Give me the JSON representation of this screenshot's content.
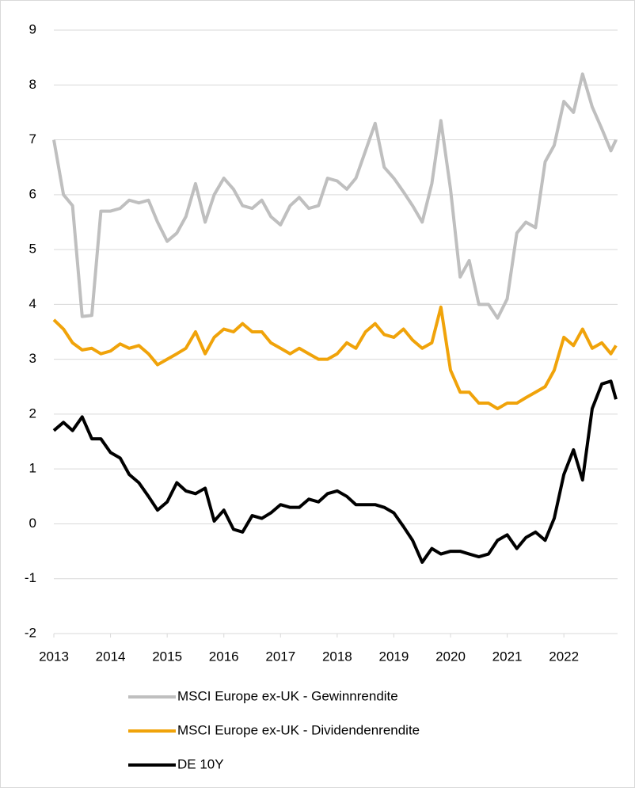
{
  "chart_data": {
    "type": "line",
    "x": [
      2013.0,
      2013.17,
      2013.33,
      2013.5,
      2013.67,
      2013.83,
      2014.0,
      2014.17,
      2014.33,
      2014.5,
      2014.67,
      2014.83,
      2015.0,
      2015.17,
      2015.33,
      2015.5,
      2015.67,
      2015.83,
      2016.0,
      2016.17,
      2016.33,
      2016.5,
      2016.67,
      2016.83,
      2017.0,
      2017.17,
      2017.33,
      2017.5,
      2017.67,
      2017.83,
      2018.0,
      2018.17,
      2018.33,
      2018.5,
      2018.67,
      2018.83,
      2019.0,
      2019.17,
      2019.33,
      2019.5,
      2019.67,
      2019.83,
      2020.0,
      2020.17,
      2020.33,
      2020.5,
      2020.67,
      2020.83,
      2021.0,
      2021.17,
      2021.33,
      2021.5,
      2021.67,
      2021.83,
      2022.0,
      2022.17,
      2022.33,
      2022.5,
      2022.67,
      2022.83,
      2022.92
    ],
    "series": [
      {
        "name": "MSCI Europe ex-UK - Gewinnrendite",
        "color": "#bfbfbf",
        "values": [
          7.0,
          6.0,
          5.8,
          3.78,
          3.8,
          5.7,
          5.7,
          5.75,
          5.9,
          5.85,
          5.9,
          5.5,
          5.15,
          5.3,
          5.6,
          6.2,
          5.5,
          6.0,
          6.3,
          6.1,
          5.8,
          5.75,
          5.9,
          5.6,
          5.45,
          5.8,
          5.95,
          5.75,
          5.8,
          6.3,
          6.25,
          6.1,
          6.3,
          6.8,
          7.3,
          6.5,
          6.3,
          6.05,
          5.8,
          5.5,
          6.2,
          7.35,
          6.1,
          4.5,
          4.8,
          4.0,
          4.0,
          3.75,
          4.1,
          5.3,
          5.5,
          5.4,
          6.6,
          6.9,
          7.7,
          7.5,
          8.2,
          7.6,
          7.2,
          6.8,
          7.0
        ]
      },
      {
        "name": "MSCI Europe ex-UK - Dividendenrendite",
        "color": "#f0a30a",
        "values": [
          3.72,
          3.55,
          3.3,
          3.17,
          3.2,
          3.1,
          3.15,
          3.28,
          3.2,
          3.25,
          3.1,
          2.9,
          3.0,
          3.1,
          3.2,
          3.5,
          3.1,
          3.4,
          3.55,
          3.5,
          3.65,
          3.5,
          3.5,
          3.3,
          3.2,
          3.1,
          3.2,
          3.1,
          3.0,
          3.0,
          3.1,
          3.3,
          3.2,
          3.5,
          3.65,
          3.45,
          3.4,
          3.55,
          3.35,
          3.2,
          3.3,
          3.95,
          2.8,
          2.4,
          2.4,
          2.2,
          2.2,
          2.1,
          2.2,
          2.2,
          2.3,
          2.4,
          2.5,
          2.8,
          3.4,
          3.25,
          3.55,
          3.2,
          3.3,
          3.1,
          3.25
        ]
      },
      {
        "name": "DE 10Y",
        "color": "#000000",
        "values": [
          1.7,
          1.85,
          1.7,
          1.95,
          1.55,
          1.55,
          1.3,
          1.2,
          0.9,
          0.75,
          0.5,
          0.25,
          0.4,
          0.75,
          0.6,
          0.55,
          0.65,
          0.05,
          0.25,
          -0.1,
          -0.15,
          0.15,
          0.1,
          0.2,
          0.35,
          0.3,
          0.3,
          0.45,
          0.4,
          0.55,
          0.6,
          0.5,
          0.35,
          0.35,
          0.35,
          0.3,
          0.2,
          -0.05,
          -0.3,
          -0.7,
          -0.45,
          -0.55,
          -0.5,
          -0.5,
          -0.55,
          -0.6,
          -0.55,
          -0.3,
          -0.2,
          -0.45,
          -0.25,
          -0.15,
          -0.3,
          0.1,
          0.9,
          1.35,
          0.8,
          2.1,
          2.55,
          2.6,
          2.27
        ]
      }
    ],
    "xlim": [
      2013,
      2022.92
    ],
    "xticks": [
      2013,
      2014,
      2015,
      2016,
      2017,
      2018,
      2019,
      2020,
      2021,
      2022
    ],
    "ylim": [
      -2,
      9
    ],
    "yticks": [
      -2,
      -1,
      0,
      1,
      2,
      3,
      4,
      5,
      6,
      7,
      8,
      9
    ],
    "grid": true
  }
}
